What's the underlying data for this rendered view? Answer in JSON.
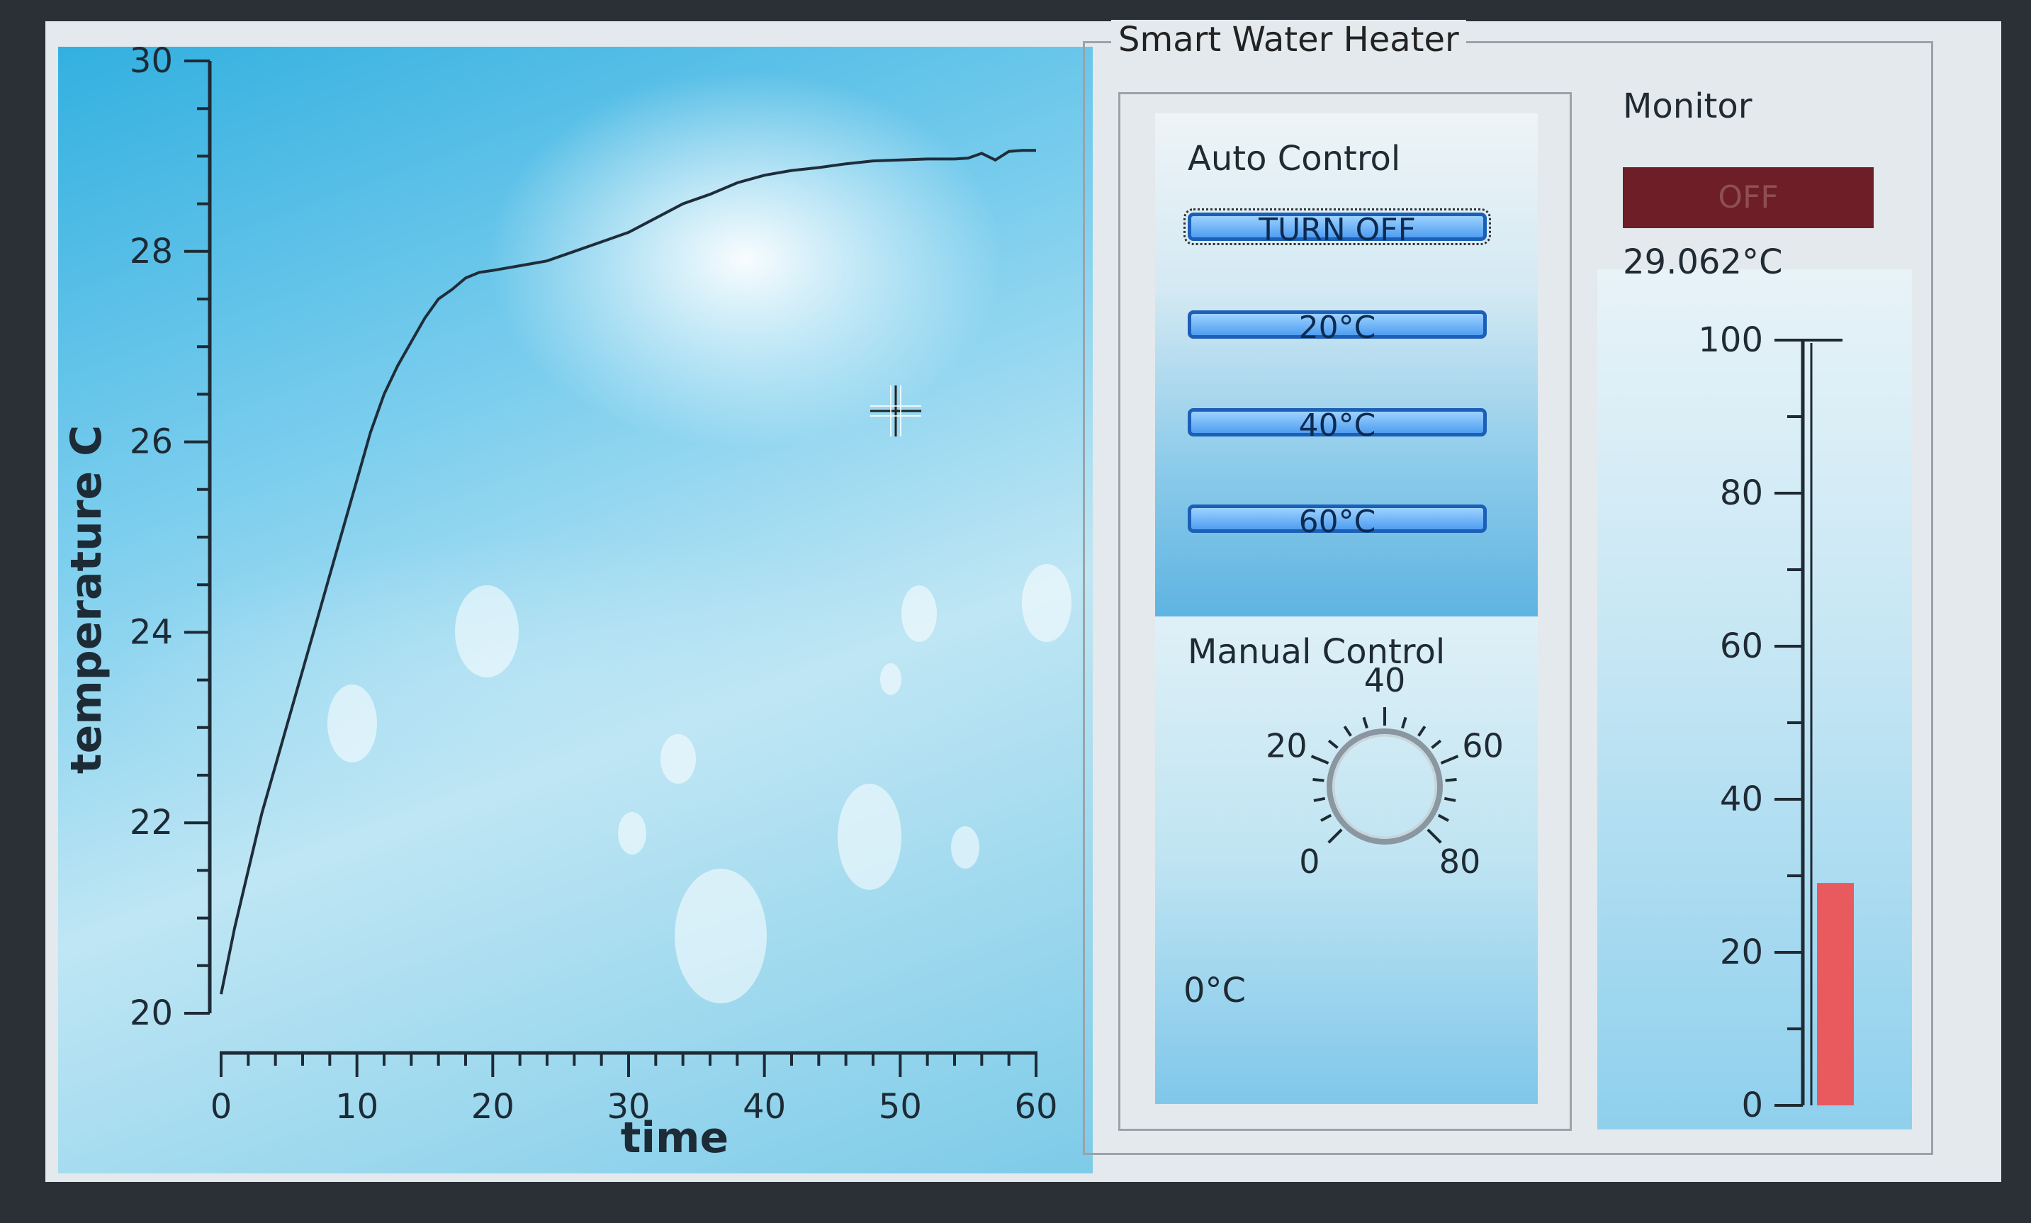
{
  "chart": {
    "ylabel": "temperature C",
    "xlabel": "time"
  },
  "chart_data": {
    "type": "line",
    "xlabel": "time",
    "ylabel": "temperature C",
    "xlim": [
      0,
      60
    ],
    "ylim": [
      20,
      30
    ],
    "x_ticks": [
      "0",
      "10",
      "20",
      "30",
      "40",
      "50",
      "60"
    ],
    "y_ticks": [
      "20",
      "22",
      "24",
      "26",
      "28",
      "30"
    ],
    "grid": false,
    "series": [
      {
        "color": "#1f2d3a",
        "points": [
          [
            0,
            20.2
          ],
          [
            1,
            20.9
          ],
          [
            2,
            21.5
          ],
          [
            3,
            22.1
          ],
          [
            4,
            22.6
          ],
          [
            5,
            23.1
          ],
          [
            6,
            23.6
          ],
          [
            7,
            24.1
          ],
          [
            8,
            24.6
          ],
          [
            9,
            25.1
          ],
          [
            10,
            25.6
          ],
          [
            11,
            26.1
          ],
          [
            12,
            26.5
          ],
          [
            13,
            26.8
          ],
          [
            14,
            27.05
          ],
          [
            15,
            27.3
          ],
          [
            16,
            27.5
          ],
          [
            17,
            27.6
          ],
          [
            18,
            27.72
          ],
          [
            19,
            27.78
          ],
          [
            20,
            27.8
          ],
          [
            22,
            27.85
          ],
          [
            24,
            27.9
          ],
          [
            26,
            28.0
          ],
          [
            28,
            28.1
          ],
          [
            30,
            28.2
          ],
          [
            32,
            28.35
          ],
          [
            34,
            28.5
          ],
          [
            36,
            28.6
          ],
          [
            38,
            28.72
          ],
          [
            40,
            28.8
          ],
          [
            42,
            28.85
          ],
          [
            44,
            28.88
          ],
          [
            46,
            28.92
          ],
          [
            48,
            28.95
          ],
          [
            50,
            28.96
          ],
          [
            52,
            28.97
          ],
          [
            54,
            28.97
          ],
          [
            55,
            28.98
          ],
          [
            56,
            29.03
          ],
          [
            57,
            28.96
          ],
          [
            58,
            29.05
          ],
          [
            59,
            29.06
          ],
          [
            60,
            29.06
          ]
        ]
      }
    ]
  },
  "heater": {
    "group_title": "Smart Water Heater",
    "auto": {
      "title": "Auto Control",
      "buttons": [
        "TURN OFF",
        "20°C",
        "40°C",
        "60°C"
      ]
    },
    "manual": {
      "title": "Manual Control",
      "dial_labels": [
        "0",
        "20",
        "40",
        "60",
        "80"
      ],
      "dial_value": 0,
      "value_text": "0°C"
    },
    "monitor": {
      "title": "Monitor",
      "status": "OFF",
      "temperature_text": "29.062°C",
      "scale_labels": [
        "0",
        "20",
        "40",
        "60",
        "80",
        "100"
      ],
      "level": 29.062,
      "scale_max": 100
    }
  },
  "colors": {
    "status_lamp": "#6e1e26",
    "thermo_fill": "#e85a5e",
    "button_border": "#1c5fb8"
  },
  "icons": {
    "cursor": "crosshair-cursor-icon",
    "dial": "knob-icon"
  }
}
